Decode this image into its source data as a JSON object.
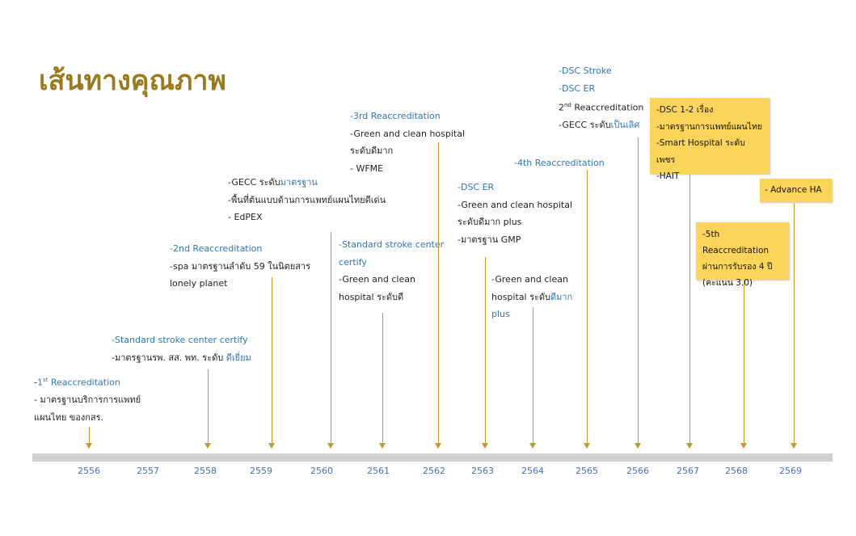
{
  "title": "เส้นทางคุณภาพ",
  "colors": {
    "title": "#9a7a1c",
    "accent": "#2e75b6",
    "arrow": "#c29a2a",
    "callout": "#fbd55a",
    "axis": "#cfcfcf"
  },
  "years": [
    "2556",
    "2557",
    "2558",
    "2559",
    "2560",
    "2561",
    "2562",
    "2563",
    "2564",
    "2565",
    "2566",
    "2567",
    "2568",
    "2569"
  ],
  "milestones": [
    {
      "year": "2556",
      "lines": [
        {
          "parts": [
            {
              "t": "-",
              "hl": false
            },
            {
              "t": "1",
              "hl": true
            },
            {
              "t": "st",
              "hl": true,
              "sup": true
            },
            {
              "t": " Reaccreditation",
              "hl": true
            }
          ]
        },
        {
          "parts": [
            {
              "t": "- มาตรฐานบริการการแพทย์",
              "hl": false
            }
          ]
        },
        {
          "parts": [
            {
              "t": "แผนไทย ของกสร.",
              "hl": false
            }
          ]
        }
      ]
    },
    {
      "year": "2558",
      "lines": [
        {
          "parts": [
            {
              "t": "-Standard stroke center certify",
              "hl": true
            }
          ]
        },
        {
          "parts": [
            {
              "t": "-มาตรฐานรพ. สส. พท. ระดับ ",
              "hl": false
            },
            {
              "t": "ดีเยี่ยม",
              "hl": true
            }
          ]
        }
      ]
    },
    {
      "year": "2559",
      "lines": [
        {
          "parts": [
            {
              "t": "-2nd Reaccreditation",
              "hl": true
            }
          ]
        },
        {
          "parts": [
            {
              "t": "-spa มาตรฐานลำดับ 59 ในนิตยสาร",
              "hl": false
            }
          ]
        },
        {
          "parts": [
            {
              "t": "lonely planet",
              "hl": false
            }
          ]
        }
      ]
    },
    {
      "year": "2560",
      "lines": [
        {
          "parts": [
            {
              "t": "-GECC ระดับ",
              "hl": false
            },
            {
              "t": "มาตรฐาน",
              "hl": true
            }
          ]
        },
        {
          "parts": [
            {
              "t": "-พื้นที่ต้นแบบด้านการแพทย์แผนไทยดีเด่น",
              "hl": false
            }
          ]
        },
        {
          "parts": [
            {
              "t": "- EdPEX",
              "hl": false
            }
          ]
        }
      ]
    },
    {
      "year": "2561",
      "lines": [
        {
          "parts": [
            {
              "t": "-Standard stroke center",
              "hl": true
            }
          ]
        },
        {
          "parts": [
            {
              "t": "certify",
              "hl": true
            }
          ]
        },
        {
          "parts": [
            {
              "t": "-Green and clean",
              "hl": false
            }
          ]
        },
        {
          "parts": [
            {
              "t": "hospital ระดับดี",
              "hl": false
            }
          ]
        }
      ]
    },
    {
      "year": "2562",
      "lines": [
        {
          "parts": [
            {
              "t": "-3rd Reaccreditation",
              "hl": true
            }
          ]
        },
        {
          "parts": [
            {
              "t": "-Green and clean hospital",
              "hl": false
            }
          ]
        },
        {
          "parts": [
            {
              "t": "ระดับดีมาก",
              "hl": false
            }
          ]
        },
        {
          "parts": [
            {
              "t": "- WFME",
              "hl": false
            }
          ]
        }
      ]
    },
    {
      "year": "2563",
      "lines": [
        {
          "parts": [
            {
              "t": "-DSC ER",
              "hl": true
            }
          ]
        },
        {
          "parts": [
            {
              "t": "-Green and clean hospital",
              "hl": false
            }
          ]
        },
        {
          "parts": [
            {
              "t": "ระดับดีมาก plus",
              "hl": false
            }
          ]
        },
        {
          "parts": [
            {
              "t": "-มาตรฐาน GMP",
              "hl": false
            }
          ]
        }
      ]
    },
    {
      "year": "2564",
      "lines": [
        {
          "parts": [
            {
              "t": "-Green and clean",
              "hl": false
            }
          ]
        },
        {
          "parts": [
            {
              "t": "hospital ระดับ",
              "hl": false
            },
            {
              "t": "ดีมาก",
              "hl": true
            }
          ]
        },
        {
          "parts": [
            {
              "t": "plus",
              "hl": true
            }
          ]
        }
      ]
    },
    {
      "year": "2565",
      "lines": [
        {
          "parts": [
            {
              "t": "-4th Reaccreditation",
              "hl": true
            }
          ]
        }
      ]
    },
    {
      "year": "2566",
      "lines": [
        {
          "parts": [
            {
              "t": "-DSC Stroke",
              "hl": true
            }
          ]
        },
        {
          "parts": [
            {
              "t": "-DSC ER",
              "hl": true
            }
          ]
        },
        {
          "parts": [
            {
              "t": "2",
              "hl": false
            },
            {
              "t": "nd",
              "hl": false,
              "sup": true
            },
            {
              "t": " Reaccreditation",
              "hl": false
            }
          ]
        },
        {
          "parts": [
            {
              "t": "-GECC ระดับ",
              "hl": false
            },
            {
              "t": "เป็นเลิศ",
              "hl": true
            }
          ]
        }
      ]
    },
    {
      "year": "2567",
      "lines": [
        {
          "parts": [
            {
              "t": "-DSC 1-2 เรื่อง",
              "hl": false
            }
          ]
        },
        {
          "parts": [
            {
              "t": "-มาตรฐานการแพทย์แผนไทย",
              "hl": false
            }
          ]
        },
        {
          "parts": [
            {
              "t": "-Smart Hospital ระดับเพชร",
              "hl": false
            }
          ]
        },
        {
          "parts": [
            {
              "t": "-HAIT",
              "hl": false
            }
          ]
        }
      ]
    },
    {
      "year": "2568",
      "lines": [
        {
          "parts": [
            {
              "t": "-5th Reaccreditation",
              "hl": false
            }
          ]
        },
        {
          "parts": [
            {
              "t": "ผ่านการรับรอง 4 ปี",
              "hl": false
            }
          ]
        },
        {
          "parts": [
            {
              "t": "(คะแนน 3.0)",
              "hl": false
            }
          ]
        }
      ]
    },
    {
      "year": "2569",
      "lines": [
        {
          "parts": [
            {
              "t": "- Advance HA",
              "hl": false
            }
          ]
        }
      ]
    }
  ]
}
